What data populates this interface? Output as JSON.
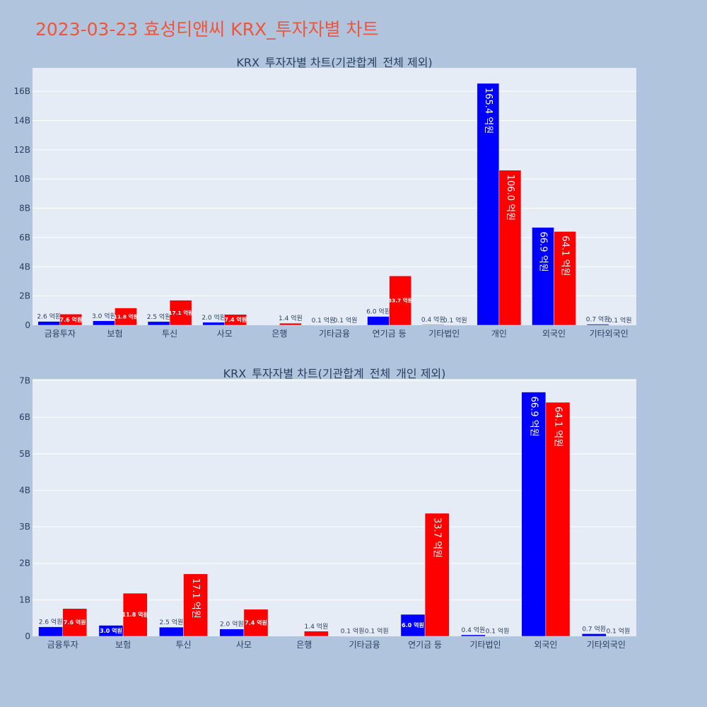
{
  "title": "2023-03-23 효성티앤씨 KRX_투자자별 차트",
  "colors": {
    "buy": "#0000ff",
    "sell": "#ff0000",
    "plot_bg": "#e5ecf6",
    "page_bg": "#b0c4de",
    "title": "#ef553b"
  },
  "chart_data": [
    {
      "type": "bar",
      "title": "KRX_투자자별 차트(기관합계_전체 제외)",
      "categories": [
        "금융투자",
        "보험",
        "투신",
        "사모",
        "은행",
        "기타금융",
        "연기금 등",
        "기타법인",
        "개인",
        "외국인",
        "기타외국인"
      ],
      "series": [
        {
          "values": [
            0.26,
            0.3,
            0.25,
            0.2,
            0.0,
            0.01,
            0.6,
            0.04,
            16.54,
            6.69,
            0.07
          ],
          "labels": [
            "2.6 억원",
            "3.0 억원",
            "2.5 억원",
            "2.0 억원",
            "",
            "0.1 억원",
            "6.0 억원",
            "0.4 억원",
            "165.4 억원",
            "66.9 억원",
            "0.7 억원"
          ]
        },
        {
          "values": [
            0.76,
            1.18,
            1.71,
            0.74,
            0.14,
            0.01,
            3.37,
            0.01,
            10.6,
            6.41,
            0.01
          ],
          "labels": [
            "7.6 억원",
            "11.8 억원",
            "17.1 억원",
            "7.4 억원",
            "1.4 억원",
            "0.1 억원",
            "33.7 억원",
            "0.1 억원",
            "106.0 억원",
            "64.1 억원",
            "0.1 억원"
          ]
        }
      ],
      "yunit": "B",
      "ylim": [
        0,
        17.6
      ],
      "yticks": [
        0,
        2,
        4,
        6,
        8,
        10,
        12,
        14,
        16
      ],
      "ytick_labels": [
        "0",
        "2B",
        "4B",
        "6B",
        "8B",
        "10B",
        "12B",
        "14B",
        "16B"
      ],
      "grid": true,
      "legend": "none"
    },
    {
      "type": "bar",
      "title": "KRX_투자자별 차트(기관합계_전체_개인 제외)",
      "categories": [
        "금융투자",
        "보험",
        "투신",
        "사모",
        "은행",
        "기타금융",
        "연기금 등",
        "기타법인",
        "외국인",
        "기타외국인"
      ],
      "series": [
        {
          "values": [
            0.26,
            0.3,
            0.25,
            0.2,
            0.0,
            0.01,
            0.6,
            0.04,
            6.69,
            0.07
          ],
          "labels": [
            "2.6 억원",
            "3.0 억원",
            "2.5 억원",
            "2.0 억원",
            "",
            "0.1 억원",
            "6.0 억원",
            "0.4 억원",
            "66.9 억원",
            "0.7 억원"
          ]
        },
        {
          "values": [
            0.76,
            1.18,
            1.71,
            0.74,
            0.14,
            0.01,
            3.37,
            0.01,
            6.41,
            0.01
          ],
          "labels": [
            "7.6 억원",
            "11.8 억원",
            "17.1 억원",
            "7.4 억원",
            "1.4 억원",
            "0.1 억원",
            "33.7 억원",
            "0.1 억원",
            "64.1 억원",
            "0.1 억원"
          ]
        }
      ],
      "yunit": "B",
      "ylim": [
        0,
        7.05
      ],
      "yticks": [
        0,
        1,
        2,
        3,
        4,
        5,
        6,
        7
      ],
      "ytick_labels": [
        "0",
        "1B",
        "2B",
        "3B",
        "4B",
        "5B",
        "6B",
        "7B"
      ],
      "grid": true,
      "legend": "none"
    }
  ]
}
